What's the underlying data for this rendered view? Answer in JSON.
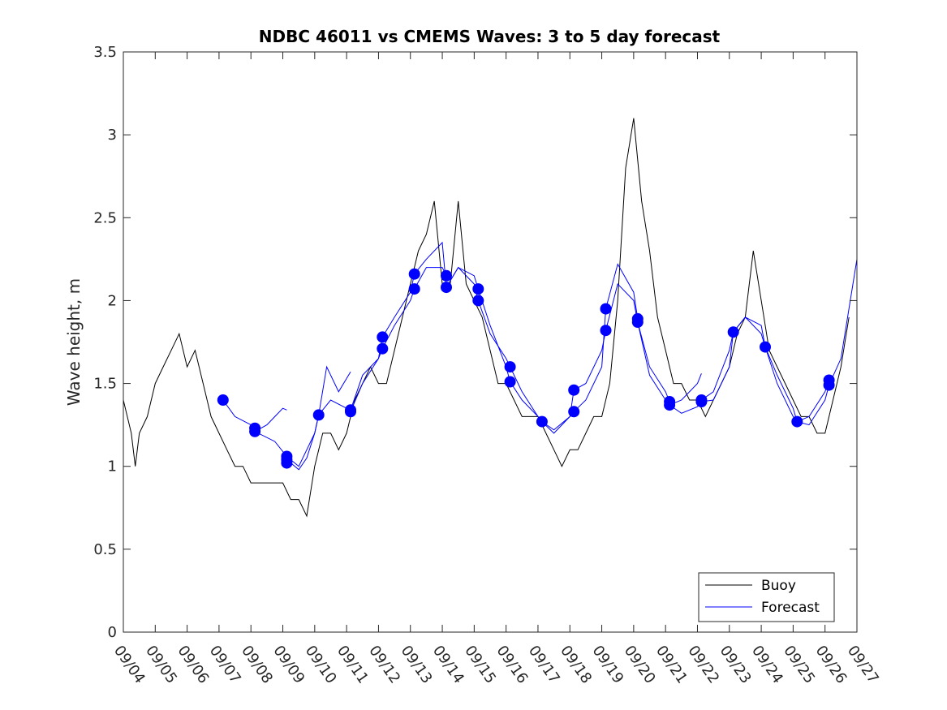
{
  "chart_data": {
    "type": "line",
    "title": "NDBC 46011 vs CMEMS Waves: 3 to 5 day forecast",
    "xlabel": "",
    "ylabel": "Wave height, m",
    "ylim": [
      0,
      3.5
    ],
    "yticks": [
      0,
      0.5,
      1,
      1.5,
      2,
      2.5,
      3,
      3.5
    ],
    "ytick_labels": [
      "0",
      "0.5",
      "1",
      "1.5",
      "2",
      "2.5",
      "3",
      "3.5"
    ],
    "xlim": [
      "09/04",
      "09/27"
    ],
    "xtick_labels": [
      "09/04",
      "09/05",
      "09/06",
      "09/07",
      "09/08",
      "09/09",
      "09/10",
      "09/11",
      "09/12",
      "09/13",
      "09/14",
      "09/15",
      "09/16",
      "09/17",
      "09/18",
      "09/19",
      "09/20",
      "09/21",
      "09/22",
      "09/23",
      "09/24",
      "09/25",
      "09/26",
      "09/27"
    ],
    "legend": {
      "position": "bottom-right",
      "entries": [
        "Buoy",
        "Forecast"
      ]
    },
    "grid": false,
    "series": [
      {
        "name": "Buoy",
        "color": "#000000",
        "style": "line",
        "x": [
          "09/04 00:00",
          "09/04 06:00",
          "09/04 09:00",
          "09/04 12:00",
          "09/04 18:00",
          "09/05 00:00",
          "09/05 06:00",
          "09/05 12:00",
          "09/05 18:00",
          "09/06 00:00",
          "09/06 06:00",
          "09/06 12:00",
          "09/06 18:00",
          "09/07 00:00",
          "09/07 06:00",
          "09/07 12:00",
          "09/07 18:00",
          "09/08 00:00",
          "09/08 06:00",
          "09/08 12:00",
          "09/08 18:00",
          "09/09 00:00",
          "09/09 06:00",
          "09/09 12:00",
          "09/09 18:00",
          "09/10 00:00",
          "09/10 06:00",
          "09/10 12:00",
          "09/10 18:00",
          "09/11 00:00",
          "09/11 06:00",
          "09/11 12:00",
          "09/11 18:00",
          "09/12 00:00",
          "09/12 06:00",
          "09/12 12:00",
          "09/12 18:00",
          "09/13 00:00",
          "09/13 06:00",
          "09/13 12:00",
          "09/13 18:00",
          "09/14 00:00",
          "09/14 06:00",
          "09/14 12:00",
          "09/14 18:00",
          "09/15 00:00",
          "09/15 06:00",
          "09/15 12:00",
          "09/15 18:00",
          "09/16 00:00",
          "09/16 06:00",
          "09/16 12:00",
          "09/16 18:00",
          "09/17 00:00",
          "09/17 06:00",
          "09/17 12:00",
          "09/17 18:00",
          "09/18 00:00",
          "09/18 06:00",
          "09/18 12:00",
          "09/18 18:00",
          "09/19 00:00",
          "09/19 06:00",
          "09/19 12:00",
          "09/19 18:00",
          "09/20 00:00",
          "09/20 06:00",
          "09/20 12:00",
          "09/20 18:00",
          "09/21 00:00",
          "09/21 06:00",
          "09/21 12:00",
          "09/21 18:00",
          "09/22 00:00",
          "09/22 06:00",
          "09/22 12:00",
          "09/22 18:00",
          "09/23 00:00",
          "09/23 06:00",
          "09/23 12:00",
          "09/23 18:00",
          "09/24 00:00",
          "09/24 06:00",
          "09/24 12:00",
          "09/24 18:00",
          "09/25 00:00",
          "09/25 06:00",
          "09/25 12:00",
          "09/25 18:00",
          "09/26 00:00",
          "09/26 06:00",
          "09/26 12:00",
          "09/26 18:00"
        ],
        "values": [
          1.4,
          1.2,
          1.0,
          1.2,
          1.3,
          1.5,
          1.6,
          1.7,
          1.8,
          1.6,
          1.7,
          1.5,
          1.3,
          1.2,
          1.1,
          1.0,
          1.0,
          0.9,
          0.9,
          0.9,
          0.9,
          0.9,
          0.8,
          0.8,
          0.7,
          1.0,
          1.2,
          1.2,
          1.1,
          1.2,
          1.4,
          1.5,
          1.6,
          1.5,
          1.5,
          1.7,
          1.9,
          2.1,
          2.3,
          2.4,
          2.6,
          2.1,
          2.1,
          2.6,
          2.1,
          2.0,
          1.9,
          1.7,
          1.5,
          1.5,
          1.4,
          1.3,
          1.3,
          1.3,
          1.2,
          1.1,
          1.0,
          1.1,
          1.1,
          1.2,
          1.3,
          1.3,
          1.5,
          2.0,
          2.8,
          3.1,
          2.6,
          2.3,
          1.9,
          1.7,
          1.5,
          1.5,
          1.4,
          1.4,
          1.3,
          1.4,
          1.5,
          1.6,
          1.8,
          1.9,
          2.3,
          2.0,
          1.7,
          1.6,
          1.5,
          1.4,
          1.3,
          1.3,
          1.2,
          1.2,
          1.4,
          1.6,
          1.9
        ]
      },
      {
        "name": "Forecast",
        "color": "#0000ff",
        "style": "lines+markers",
        "markers": [
          {
            "x": "09/07 03:00",
            "y": 1.4
          },
          {
            "x": "09/08 03:00",
            "y": 1.23
          },
          {
            "x": "09/08 03:00",
            "y": 1.21
          },
          {
            "x": "09/09 03:00",
            "y": 1.06
          },
          {
            "x": "09/09 03:00",
            "y": 1.04
          },
          {
            "x": "09/09 03:00",
            "y": 1.02
          },
          {
            "x": "09/10 03:00",
            "y": 1.31
          },
          {
            "x": "09/11 03:00",
            "y": 1.34
          },
          {
            "x": "09/11 03:00",
            "y": 1.33
          },
          {
            "x": "09/12 03:00",
            "y": 1.78
          },
          {
            "x": "09/12 03:00",
            "y": 1.71
          },
          {
            "x": "09/13 03:00",
            "y": 2.16
          },
          {
            "x": "09/13 03:00",
            "y": 2.07
          },
          {
            "x": "09/14 03:00",
            "y": 2.15
          },
          {
            "x": "09/14 03:00",
            "y": 2.08
          },
          {
            "x": "09/15 03:00",
            "y": 2.07
          },
          {
            "x": "09/15 03:00",
            "y": 2.0
          },
          {
            "x": "09/16 03:00",
            "y": 1.6
          },
          {
            "x": "09/16 03:00",
            "y": 1.51
          },
          {
            "x": "09/17 03:00",
            "y": 1.27
          },
          {
            "x": "09/18 03:00",
            "y": 1.46
          },
          {
            "x": "09/18 03:00",
            "y": 1.33
          },
          {
            "x": "09/19 03:00",
            "y": 1.95
          },
          {
            "x": "09/19 03:00",
            "y": 1.82
          },
          {
            "x": "09/20 03:00",
            "y": 1.89
          },
          {
            "x": "09/20 03:00",
            "y": 1.87
          },
          {
            "x": "09/21 03:00",
            "y": 1.39
          },
          {
            "x": "09/21 03:00",
            "y": 1.37
          },
          {
            "x": "09/22 03:00",
            "y": 1.4
          },
          {
            "x": "09/22 03:00",
            "y": 1.39
          },
          {
            "x": "09/23 03:00",
            "y": 1.81
          },
          {
            "x": "09/24 03:00",
            "y": 1.72
          },
          {
            "x": "09/25 03:00",
            "y": 1.27
          },
          {
            "x": "09/26 03:00",
            "y": 1.52
          },
          {
            "x": "09/26 03:00",
            "y": 1.49
          }
        ],
        "lines": [
          {
            "x": [
              "09/07 03:00",
              "09/07 12:00",
              "09/08 00:00",
              "09/08 03:00"
            ],
            "values": [
              1.4,
              1.3,
              1.25,
              1.23
            ]
          },
          {
            "x": [
              "09/08 03:00",
              "09/08 12:00",
              "09/08 18:00",
              "09/09 00:00",
              "09/09 03:00"
            ],
            "values": [
              1.21,
              1.25,
              1.3,
              1.35,
              1.34
            ]
          },
          {
            "x": [
              "09/08 03:00",
              "09/08 18:00",
              "09/09 03:00",
              "09/09 12:00",
              "09/10 00:00",
              "09/10 03:00"
            ],
            "values": [
              1.21,
              1.15,
              1.06,
              1.0,
              1.2,
              1.31
            ]
          },
          {
            "x": [
              "09/09 03:00",
              "09/09 12:00",
              "09/09 18:00",
              "09/10 00:00",
              "09/10 03:00",
              "09/10 09:00",
              "09/10 18:00",
              "09/11 03:00"
            ],
            "values": [
              1.04,
              0.98,
              1.05,
              1.2,
              1.31,
              1.6,
              1.45,
              1.57
            ]
          },
          {
            "x": [
              "09/10 03:00",
              "09/10 12:00",
              "09/11 00:00",
              "09/11 03:00",
              "09/11 12:00",
              "09/12 00:00",
              "09/12 03:00"
            ],
            "values": [
              1.31,
              1.4,
              1.35,
              1.34,
              1.55,
              1.65,
              1.71
            ]
          },
          {
            "x": [
              "09/11 03:00",
              "09/11 12:00",
              "09/12 00:00",
              "09/12 03:00",
              "09/12 12:00",
              "09/13 00:00",
              "09/13 03:00"
            ],
            "values": [
              1.33,
              1.5,
              1.65,
              1.78,
              1.9,
              2.05,
              2.16
            ]
          },
          {
            "x": [
              "09/12 03:00",
              "09/12 12:00",
              "09/13 00:00",
              "09/13 03:00",
              "09/13 12:00",
              "09/14 00:00",
              "09/14 03:00"
            ],
            "values": [
              1.71,
              1.85,
              2.0,
              2.07,
              2.2,
              2.2,
              2.15
            ]
          },
          {
            "x": [
              "09/13 03:00",
              "09/13 12:00",
              "09/14 00:00",
              "09/14 03:00",
              "09/14 12:00",
              "09/15 00:00",
              "09/15 03:00"
            ],
            "values": [
              2.16,
              2.25,
              2.35,
              2.08,
              2.2,
              2.15,
              2.07
            ]
          },
          {
            "x": [
              "09/14 03:00",
              "09/14 12:00",
              "09/15 00:00",
              "09/15 03:00",
              "09/15 12:00",
              "09/16 00:00",
              "09/16 03:00"
            ],
            "values": [
              2.08,
              2.2,
              2.1,
              2.0,
              1.8,
              1.65,
              1.6
            ]
          },
          {
            "x": [
              "09/15 03:00",
              "09/15 12:00",
              "09/16 00:00",
              "09/16 03:00",
              "09/16 12:00",
              "09/17 00:00",
              "09/17 03:00"
            ],
            "values": [
              2.07,
              1.85,
              1.6,
              1.51,
              1.4,
              1.3,
              1.27
            ]
          },
          {
            "x": [
              "09/16 03:00",
              "09/16 12:00",
              "09/17 00:00",
              "09/17 03:00",
              "09/17 12:00",
              "09/18 00:00",
              "09/18 03:00"
            ],
            "values": [
              1.6,
              1.45,
              1.3,
              1.27,
              1.22,
              1.3,
              1.33
            ]
          },
          {
            "x": [
              "09/17 03:00",
              "09/17 12:00",
              "09/18 00:00",
              "09/18 03:00",
              "09/18 12:00",
              "09/19 00:00",
              "09/19 03:00"
            ],
            "values": [
              1.27,
              1.2,
              1.3,
              1.46,
              1.5,
              1.7,
              1.82
            ]
          },
          {
            "x": [
              "09/18 03:00",
              "09/18 12:00",
              "09/19 00:00",
              "09/19 03:00",
              "09/19 12:00",
              "09/20 00:00",
              "09/20 03:00"
            ],
            "values": [
              1.33,
              1.4,
              1.6,
              1.95,
              2.22,
              2.05,
              1.89
            ]
          },
          {
            "x": [
              "09/19 03:00",
              "09/19 12:00",
              "09/20 00:00",
              "09/20 03:00",
              "09/20 12:00",
              "09/21 00:00",
              "09/21 03:00"
            ],
            "values": [
              1.82,
              2.1,
              2.0,
              1.87,
              1.6,
              1.45,
              1.39
            ]
          },
          {
            "x": [
              "09/20 03:00",
              "09/20 12:00",
              "09/21 00:00",
              "09/21 03:00",
              "09/21 12:00",
              "09/22 00:00",
              "09/22 03:00"
            ],
            "values": [
              1.87,
              1.55,
              1.4,
              1.37,
              1.4,
              1.5,
              1.56
            ]
          },
          {
            "x": [
              "09/21 03:00",
              "09/21 12:00",
              "09/22 00:00",
              "09/22 03:00",
              "09/22 12:00",
              "09/23 00:00",
              "09/23 03:00"
            ],
            "values": [
              1.37,
              1.32,
              1.36,
              1.4,
              1.45,
              1.7,
              1.81
            ]
          },
          {
            "x": [
              "09/22 03:00",
              "09/22 12:00",
              "09/23 00:00",
              "09/23 03:00",
              "09/23 12:00",
              "09/24 00:00",
              "09/24 03:00"
            ],
            "values": [
              1.39,
              1.4,
              1.6,
              1.81,
              1.9,
              1.85,
              1.72
            ]
          },
          {
            "x": [
              "09/23 03:00",
              "09/23 12:00",
              "09/24 00:00",
              "09/24 03:00",
              "09/24 12:00",
              "09/25 00:00",
              "09/25 03:00"
            ],
            "values": [
              1.81,
              1.9,
              1.8,
              1.72,
              1.55,
              1.35,
              1.27
            ]
          },
          {
            "x": [
              "09/24 03:00",
              "09/24 12:00",
              "09/25 00:00",
              "09/25 03:00",
              "09/25 12:00",
              "09/26 00:00",
              "09/26 03:00"
            ],
            "values": [
              1.72,
              1.5,
              1.3,
              1.27,
              1.3,
              1.45,
              1.52
            ]
          },
          {
            "x": [
              "09/25 03:00",
              "09/25 12:00",
              "09/26 00:00",
              "09/26 03:00",
              "09/26 12:00",
              "09/27 00:00"
            ],
            "values": [
              1.27,
              1.25,
              1.4,
              1.49,
              1.65,
              2.25
            ]
          }
        ]
      }
    ]
  }
}
